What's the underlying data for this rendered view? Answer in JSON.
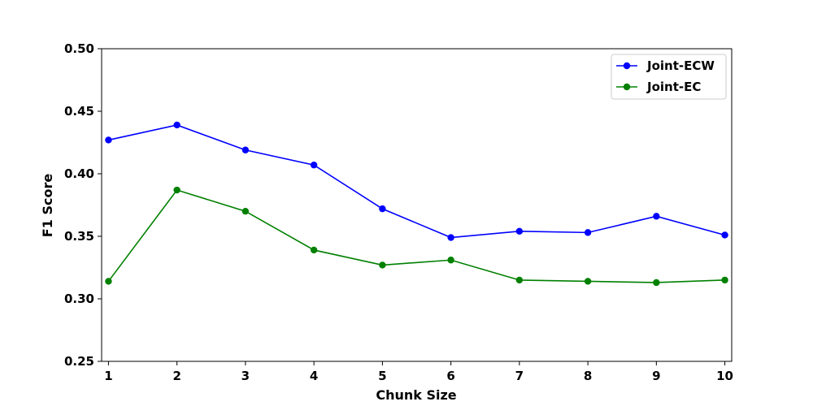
{
  "chart_data": {
    "type": "line",
    "xlabel": "Chunk Size",
    "ylabel": "F1 Score",
    "x": [
      1,
      2,
      3,
      4,
      5,
      6,
      7,
      8,
      9,
      10
    ],
    "xlim": [
      0.9,
      10.1
    ],
    "ylim": [
      0.25,
      0.5
    ],
    "xticks": [
      "1",
      "2",
      "3",
      "4",
      "5",
      "6",
      "7",
      "8",
      "9",
      "10"
    ],
    "yticks": [
      "0.25",
      "0.30",
      "0.35",
      "0.40",
      "0.45",
      "0.50"
    ],
    "grid": false,
    "legend_position": "top-right",
    "series": [
      {
        "name": "Joint-ECW",
        "color": "#0000ff",
        "marker": "circle",
        "values": [
          0.427,
          0.439,
          0.419,
          0.407,
          0.372,
          0.349,
          0.354,
          0.353,
          0.366,
          0.351
        ]
      },
      {
        "name": "Joint-EC",
        "color": "#008000",
        "marker": "circle",
        "values": [
          0.314,
          0.387,
          0.37,
          0.339,
          0.327,
          0.331,
          0.315,
          0.314,
          0.313,
          0.315
        ]
      }
    ]
  }
}
